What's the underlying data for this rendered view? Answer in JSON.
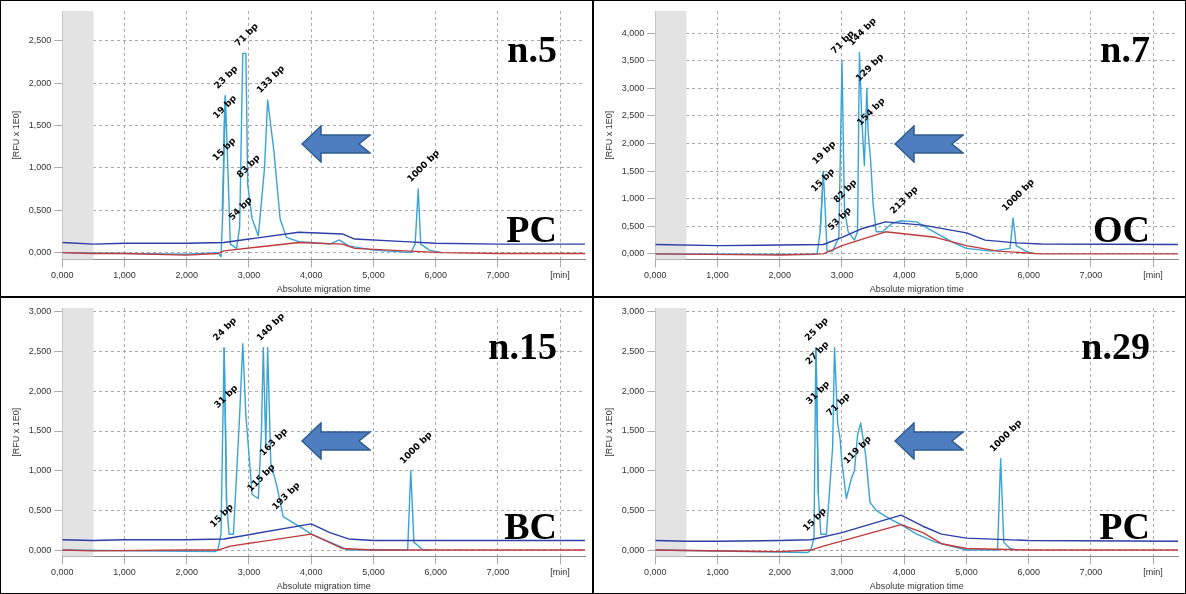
{
  "chart_data": [
    {
      "type": "line",
      "xlabel": "Absolute migration time",
      "ylabel": "[RFU x 1E0]",
      "xlim": [
        0,
        8.4
      ],
      "ylim": [
        -0.08,
        2.85
      ],
      "xticks": [
        {
          "value": 0,
          "label": "0,000"
        },
        {
          "value": 1,
          "label": "1,000"
        },
        {
          "value": 2,
          "label": "2,000"
        },
        {
          "value": 3,
          "label": "3,000"
        },
        {
          "value": 4,
          "label": "4,000"
        },
        {
          "value": 5,
          "label": "5,000"
        },
        {
          "value": 6,
          "label": "6,000"
        },
        {
          "value": 7,
          "label": "7,000"
        },
        {
          "value": 8,
          "label": "[min]"
        }
      ],
      "yticks": [
        {
          "value": 0,
          "label": "0,000"
        },
        {
          "value": 0.5,
          "label": "0,500"
        },
        {
          "value": 1,
          "label": "1,000"
        },
        {
          "value": 1.5,
          "label": "1,500"
        },
        {
          "value": 2,
          "label": "2,000"
        },
        {
          "value": 2.5,
          "label": "2,500"
        }
      ],
      "grid": true,
      "legend": false,
      "line_style": "solid",
      "bands": [
        {
          "axis": "x",
          "from": 0,
          "to": 0.5,
          "color": "#e3e3e3"
        }
      ],
      "series": [
        {
          "color": "#3aa3d6",
          "x": [
            0,
            2,
            2.5,
            2.55,
            2.58,
            2.62,
            2.66,
            2.7,
            2.8,
            2.85,
            2.9,
            2.95,
            2.98,
            3.05,
            3.15,
            3.25,
            3.3,
            3.4,
            3.5,
            3.6,
            3.8,
            4,
            4.3,
            4.45,
            4.6,
            5,
            5.6,
            5.67,
            5.72,
            5.76,
            5.9,
            6.1
          ],
          "values": [
            0,
            -0.02,
            0,
            -0.05,
            0.5,
            1.85,
            1,
            0.1,
            0.05,
            0.3,
            2.35,
            2.35,
            0.8,
            0.4,
            0.2,
            1,
            1.8,
            1.2,
            0.4,
            0.18,
            0.13,
            0.12,
            0.1,
            0.15,
            0.08,
            0.03,
            0,
            0.1,
            0.75,
            0.1,
            0.03,
            0
          ]
        },
        {
          "color": "#3aa3d6",
          "x": [
            2.57,
            2.59,
            2.6,
            2.62
          ],
          "values": [
            0.5,
            1,
            1.5,
            1.85
          ]
        },
        {
          "color": "#2b3ea8",
          "x": [
            0,
            0.5,
            1,
            2,
            2.6,
            3,
            3.8,
            4.5,
            4.7,
            5.5,
            6,
            7,
            8.4
          ],
          "values": [
            0.12,
            0.1,
            0.11,
            0.11,
            0.12,
            0.16,
            0.24,
            0.22,
            0.16,
            0.13,
            0.11,
            0.1,
            0.1
          ]
        },
        {
          "color": "#c0393b",
          "x": [
            0,
            0.5,
            1,
            2,
            2.5,
            2.6,
            3.8,
            4.5,
            4.7,
            5.5,
            6.1,
            7,
            8.4
          ],
          "values": [
            0,
            -0.01,
            -0.01,
            -0.03,
            -0.01,
            0.02,
            0.12,
            0.1,
            0.05,
            0.02,
            0,
            -0.01,
            -0.01
          ]
        }
      ],
      "annotations": [
        "n.5",
        "PC",
        {
          "text": "71 bp",
          "x": 2.95,
          "y": 2.35
        },
        {
          "text": "23 bp",
          "x": 2.62,
          "y": 1.85
        },
        {
          "text": "19 bp",
          "x": 2.6,
          "y": 1.5
        },
        {
          "text": "15 bp",
          "x": 2.59,
          "y": 1
        },
        {
          "text": "133 bp",
          "x": 3.3,
          "y": 1.8
        },
        {
          "text": "83 bp",
          "x": 2.98,
          "y": 0.8
        },
        {
          "text": "54 bp",
          "x": 2.85,
          "y": 0.3
        },
        {
          "text": "1000 bp",
          "x": 5.72,
          "y": 0.75
        }
      ]
    },
    {
      "type": "line",
      "xlabel": "Absolute migration time",
      "ylabel": "[RFU x 1E0]",
      "xlim": [
        0,
        8.4
      ],
      "ylim": [
        -0.1,
        4.4
      ],
      "xticks": [
        {
          "value": 0,
          "label": "0,000"
        },
        {
          "value": 1,
          "label": "1,000"
        },
        {
          "value": 2,
          "label": "2,000"
        },
        {
          "value": 3,
          "label": "3,000"
        },
        {
          "value": 4,
          "label": "4,000"
        },
        {
          "value": 5,
          "label": "5,000"
        },
        {
          "value": 6,
          "label": "6,000"
        },
        {
          "value": 7,
          "label": "7,000"
        },
        {
          "value": 8,
          "label": "[min]"
        }
      ],
      "yticks": [
        {
          "value": 0,
          "label": "0,000"
        },
        {
          "value": 0.5,
          "label": "0,500"
        },
        {
          "value": 1,
          "label": "1,000"
        },
        {
          "value": 1.5,
          "label": "1,500"
        },
        {
          "value": 2,
          "label": "2,000"
        },
        {
          "value": 2.5,
          "label": "2,500"
        },
        {
          "value": 3,
          "label": "3,000"
        },
        {
          "value": 3.5,
          "label": "3,500"
        },
        {
          "value": 4,
          "label": "4,000"
        }
      ],
      "grid": true,
      "legend": false,
      "line_style": "solid",
      "bands": [
        {
          "axis": "x",
          "from": 0,
          "to": 0.5,
          "color": "#e3e3e3"
        }
      ],
      "series": [
        {
          "color": "#3aa3d6",
          "x": [
            0,
            2.5,
            2.6,
            2.65,
            2.7,
            2.73,
            2.76,
            2.85,
            2.95,
            3,
            3.04,
            3.1,
            3.2,
            3.25,
            3.28,
            3.32,
            3.36,
            3.4,
            3.42,
            3.46,
            3.5,
            3.55,
            3.65,
            3.8,
            3.95,
            4.2,
            4.4,
            4.6,
            4.8,
            5,
            5.4,
            5.7,
            5.75,
            5.8,
            5.95,
            6.1
          ],
          "values": [
            0,
            -0.01,
            0,
            0.4,
            1.5,
            0.8,
            0.05,
            0.05,
            0.3,
            3.5,
            0.8,
            0.4,
            0.25,
            0.4,
            3.65,
            2.4,
            1.6,
            3,
            2.2,
            1.7,
            0.9,
            0.4,
            0.4,
            0.55,
            0.6,
            0.58,
            0.45,
            0.32,
            0.2,
            0.1,
            0.05,
            0.1,
            0.65,
            0.15,
            0.05,
            0
          ]
        },
        {
          "color": "#3aa3d6",
          "x": [
            2.65,
            2.68,
            2.7
          ],
          "values": [
            0.4,
            1,
            1.5
          ]
        },
        {
          "color": "#2b3ea8",
          "x": [
            0,
            1,
            2,
            2.7,
            3,
            3.3,
            3.7,
            4.3,
            5,
            5.3,
            5.8,
            6.2,
            8.4
          ],
          "values": [
            0.17,
            0.15,
            0.16,
            0.17,
            0.3,
            0.45,
            0.58,
            0.52,
            0.38,
            0.25,
            0.2,
            0.18,
            0.17
          ]
        },
        {
          "color": "#c0393b",
          "x": [
            0,
            2,
            2.7,
            3,
            3.7,
            4.5,
            5,
            5.5,
            6.2,
            8.4
          ],
          "values": [
            0,
            -0.02,
            0,
            0.15,
            0.4,
            0.3,
            0.15,
            0.05,
            0,
            0
          ]
        }
      ],
      "annotations": [
        "n.7",
        "OC",
        {
          "text": "71 bp",
          "x": 3,
          "y": 3.5
        },
        {
          "text": "144 bp",
          "x": 3.28,
          "y": 3.65
        },
        {
          "text": "129 bp",
          "x": 3.4,
          "y": 3
        },
        {
          "text": "154 bp",
          "x": 3.42,
          "y": 2.2
        },
        {
          "text": "19 bp",
          "x": 2.7,
          "y": 1.5
        },
        {
          "text": "15 bp",
          "x": 2.68,
          "y": 1
        },
        {
          "text": "82 bp",
          "x": 3.04,
          "y": 0.8
        },
        {
          "text": "53 bp",
          "x": 2.95,
          "y": 0.3
        },
        {
          "text": "213 bp",
          "x": 3.95,
          "y": 0.6
        },
        {
          "text": "1000 bp",
          "x": 5.75,
          "y": 0.65
        }
      ]
    },
    {
      "type": "line",
      "xlabel": "Absolute migration time",
      "ylabel": "[RFU x 1E0]",
      "xlim": [
        0,
        8.4
      ],
      "ylim": [
        -0.08,
        3.05
      ],
      "xticks": [
        {
          "value": 0,
          "label": "0,000"
        },
        {
          "value": 1,
          "label": "1,000"
        },
        {
          "value": 2,
          "label": "2,000"
        },
        {
          "value": 3,
          "label": "3,000"
        },
        {
          "value": 4,
          "label": "4,000"
        },
        {
          "value": 5,
          "label": "5,000"
        },
        {
          "value": 6,
          "label": "6,000"
        },
        {
          "value": 7,
          "label": "7,000"
        },
        {
          "value": 8,
          "label": "[min]"
        }
      ],
      "yticks": [
        {
          "value": 0,
          "label": "0,000"
        },
        {
          "value": 0.5,
          "label": "0,500"
        },
        {
          "value": 1,
          "label": "1,000"
        },
        {
          "value": 1.5,
          "label": "1,500"
        },
        {
          "value": 2,
          "label": "2,000"
        },
        {
          "value": 2.5,
          "label": "2,500"
        },
        {
          "value": 3,
          "label": "3,000"
        }
      ],
      "grid": true,
      "legend": false,
      "line_style": "solid",
      "bands": [
        {
          "axis": "x",
          "from": 0,
          "to": 0.5,
          "color": "#e3e3e3"
        }
      ],
      "series": [
        {
          "color": "#3aa3d6",
          "x": [
            0,
            2.45,
            2.5,
            2.55,
            2.6,
            2.64,
            2.68,
            2.75,
            2.85,
            2.9,
            2.95,
            3,
            3.05,
            3.15,
            3.2,
            3.23,
            3.27,
            3.3,
            3.35,
            3.45,
            3.55,
            3.7,
            3.85,
            4,
            4.3,
            4.6,
            5,
            5.55,
            5.6,
            5.65,
            5.8,
            5.9
          ],
          "values": [
            0,
            -0.02,
            0,
            0.2,
            2.55,
            0.6,
            0.2,
            0.2,
            1.7,
            2.6,
            1.7,
            1.2,
            0.7,
            0.65,
            1.5,
            2.55,
            1.3,
            2.55,
            1.1,
            0.8,
            0.42,
            0.35,
            0.28,
            0.2,
            0.1,
            0,
            0,
            0,
            1,
            0.1,
            0,
            0
          ]
        },
        {
          "color": "#3aa3d6",
          "x": [
            2.6,
            2.62,
            2.64
          ],
          "values": [
            2.55,
            1.7,
            0.6
          ]
        },
        {
          "color": "#2b3ea8",
          "x": [
            0,
            0.5,
            1,
            2,
            2.6,
            4,
            4.3,
            4.6,
            5,
            8.4
          ],
          "values": [
            0.13,
            0.12,
            0.13,
            0.13,
            0.14,
            0.33,
            0.22,
            0.14,
            0.12,
            0.12
          ]
        },
        {
          "color": "#c0393b",
          "x": [
            0,
            0.5,
            2,
            2.5,
            2.7,
            4,
            4.5,
            5,
            8.4
          ],
          "values": [
            0,
            -0.01,
            0,
            0,
            0.05,
            0.2,
            0.02,
            0,
            0
          ]
        }
      ],
      "annotations": [
        "n.15",
        "BC",
        {
          "text": "24 bp",
          "x": 2.6,
          "y": 2.55
        },
        {
          "text": "140 bp",
          "x": 3.3,
          "y": 2.55
        },
        {
          "text": "31 bp",
          "x": 2.62,
          "y": 1.7
        },
        {
          "text": "163 bp",
          "x": 3.35,
          "y": 1.1
        },
        {
          "text": "115 bp",
          "x": 3.15,
          "y": 0.65
        },
        {
          "text": "193 bp",
          "x": 3.55,
          "y": 0.42
        },
        {
          "text": "15 bp",
          "x": 2.55,
          "y": 0.2
        },
        {
          "text": "1000 bp",
          "x": 5.6,
          "y": 1
        }
      ]
    },
    {
      "type": "line",
      "xlabel": "Absolute migration time",
      "ylabel": "[RFU x 1E0]",
      "xlim": [
        0,
        8.4
      ],
      "ylim": [
        -0.08,
        3.05
      ],
      "xticks": [
        {
          "value": 0,
          "label": "0,000"
        },
        {
          "value": 1,
          "label": "1,000"
        },
        {
          "value": 2,
          "label": "2,000"
        },
        {
          "value": 3,
          "label": "3,000"
        },
        {
          "value": 4,
          "label": "4,000"
        },
        {
          "value": 5,
          "label": "5,000"
        },
        {
          "value": 6,
          "label": "6,000"
        },
        {
          "value": 7,
          "label": "7,000"
        },
        {
          "value": 8,
          "label": "[min]"
        }
      ],
      "yticks": [
        {
          "value": 0,
          "label": "0,000"
        },
        {
          "value": 0.5,
          "label": "0,500"
        },
        {
          "value": 1,
          "label": "1,000"
        },
        {
          "value": 1.5,
          "label": "1,500"
        },
        {
          "value": 2,
          "label": "2,000"
        },
        {
          "value": 2.5,
          "label": "2,500"
        },
        {
          "value": 3,
          "label": "3,000"
        }
      ],
      "grid": true,
      "legend": false,
      "line_style": "solid",
      "bands": [
        {
          "axis": "x",
          "from": 0,
          "to": 0.5,
          "color": "#e3e3e3"
        }
      ],
      "series": [
        {
          "color": "#3aa3d6",
          "x": [
            0,
            2.45,
            2.5,
            2.55,
            2.58,
            2.62,
            2.66,
            2.75,
            2.85,
            2.88,
            2.93,
            2.97,
            3,
            3.07,
            3.15,
            3.2,
            3.25,
            3.3,
            3.38,
            3.45,
            3.55,
            3.65,
            3.8,
            3.95,
            4.2,
            4.5,
            5,
            5.5,
            5.55,
            5.6,
            5.7,
            5.8
          ],
          "values": [
            0,
            -0.03,
            0,
            0.15,
            2.55,
            0.7,
            0.2,
            0.2,
            1.3,
            2.55,
            1.6,
            1.4,
            1.1,
            0.65,
            0.9,
            1,
            1.45,
            1.6,
            1.2,
            0.6,
            0.5,
            0.45,
            0.38,
            0.32,
            0.2,
            0.1,
            0,
            0,
            1.15,
            0.1,
            0.02,
            0
          ]
        },
        {
          "color": "#3aa3d6",
          "x": [
            2.58,
            2.59,
            2.6,
            2.62
          ],
          "values": [
            2.55,
            2.25,
            1.75,
            0.7
          ]
        },
        {
          "color": "#2b3ea8",
          "x": [
            0,
            0.5,
            1,
            2,
            2.5,
            3,
            3.95,
            4.3,
            4.6,
            5,
            6,
            8.4
          ],
          "values": [
            0.12,
            0.11,
            0.11,
            0.12,
            0.13,
            0.22,
            0.44,
            0.3,
            0.2,
            0.15,
            0.12,
            0.11
          ]
        },
        {
          "color": "#c0393b",
          "x": [
            0,
            2,
            2.5,
            2.7,
            3.95,
            4.3,
            4.6,
            5,
            6,
            8.4
          ],
          "values": [
            0,
            -0.02,
            0,
            0.05,
            0.32,
            0.22,
            0.08,
            0.02,
            0,
            0
          ]
        }
      ],
      "annotations": [
        "n.29",
        "PC",
        {
          "text": "25 bp",
          "x": 2.58,
          "y": 2.55
        },
        {
          "text": "27 bp",
          "x": 2.59,
          "y": 2.25
        },
        {
          "text": "31 bp",
          "x": 2.6,
          "y": 1.75
        },
        {
          "text": "71 bp",
          "x": 2.93,
          "y": 1.6
        },
        {
          "text": "119 bp",
          "x": 3.2,
          "y": 1
        },
        {
          "text": "15 bp",
          "x": 2.55,
          "y": 0.15
        },
        {
          "text": "1000 bp",
          "x": 5.55,
          "y": 1.15
        }
      ]
    }
  ]
}
